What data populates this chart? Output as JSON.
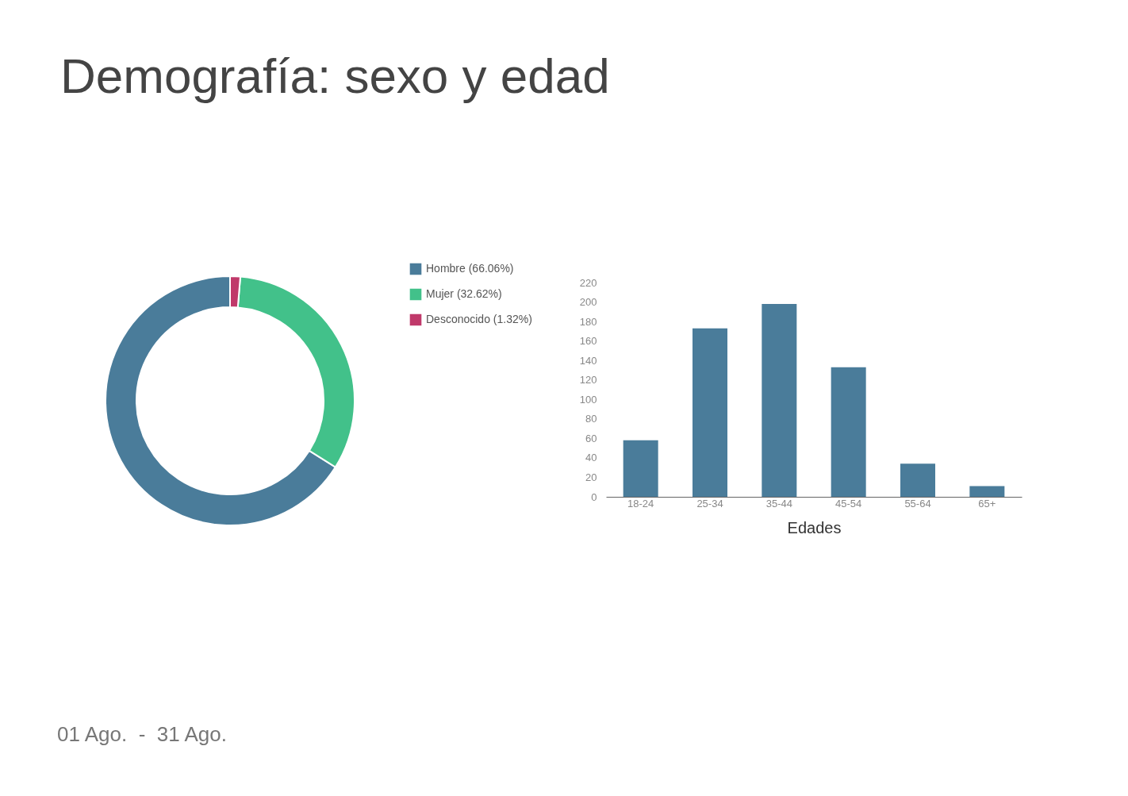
{
  "chart_data": [
    {
      "type": "donut",
      "title": "Demografía: sexo y edad",
      "categories": [
        "Hombre (66.06%)",
        "Mujer (32.62%)",
        "Desconocido (1.32%)"
      ],
      "values": [
        66.06,
        32.62,
        1.32
      ],
      "colors": [
        "#4a7c9a",
        "#42c18a",
        "#c0396a"
      ],
      "legend": "right",
      "annotations": [
        "01 Ago.  -  31 Ago."
      ]
    },
    {
      "type": "bar",
      "xlabel": "Edades",
      "categories": [
        "18-24",
        "25-34",
        "35-44",
        "45-54",
        "55-64",
        "65+"
      ],
      "values": [
        58,
        173,
        198,
        133,
        34,
        11
      ],
      "color": "#4a7c9a",
      "ylim": [
        0,
        220
      ],
      "yticks": [
        0,
        20,
        40,
        60,
        80,
        100,
        120,
        140,
        160,
        180,
        200,
        220
      ],
      "grid": false
    }
  ]
}
